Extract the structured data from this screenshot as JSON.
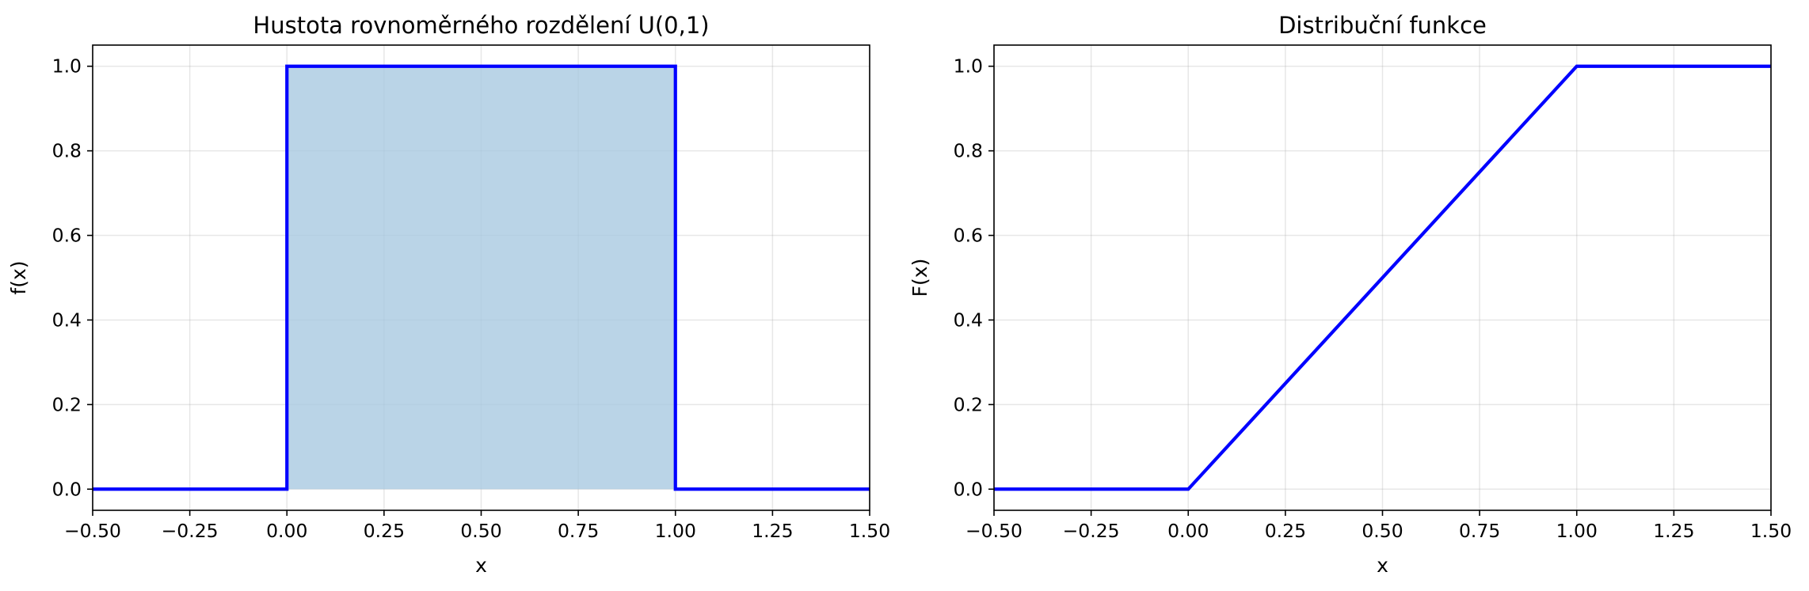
{
  "colors": {
    "line": "#0000ff",
    "fill": "#a6c8e0",
    "grid": "#b0b0b0"
  },
  "chart_data": [
    {
      "type": "area",
      "title": "Hustota rovnoměrného rozdělení U(0,1)",
      "xlabel": "x",
      "ylabel": "f(x)",
      "xlim": [
        -0.5,
        1.5
      ],
      "ylim": [
        -0.05,
        1.05
      ],
      "grid": true,
      "xticks": [
        -0.5,
        -0.25,
        0.0,
        0.25,
        0.5,
        0.75,
        1.0,
        1.25,
        1.5
      ],
      "xtick_labels": [
        "−0.50",
        "−0.25",
        "0.00",
        "0.25",
        "0.50",
        "0.75",
        "1.00",
        "1.25",
        "1.50"
      ],
      "yticks": [
        0.0,
        0.2,
        0.4,
        0.6,
        0.8,
        1.0
      ],
      "ytick_labels": [
        "0.0",
        "0.2",
        "0.4",
        "0.6",
        "0.8",
        "1.0"
      ],
      "series": [
        {
          "x": [
            -0.5,
            0.0,
            0.0,
            1.0,
            1.0,
            1.5
          ],
          "y": [
            0,
            0,
            1,
            1,
            0,
            0
          ]
        }
      ],
      "fill_between": {
        "x": [
          0.0,
          1.0
        ],
        "y": 1.0
      }
    },
    {
      "type": "line",
      "title": "Distribuční funkce",
      "xlabel": "x",
      "ylabel": "F(x)",
      "xlim": [
        -0.5,
        1.5
      ],
      "ylim": [
        -0.05,
        1.05
      ],
      "grid": true,
      "xticks": [
        -0.5,
        -0.25,
        0.0,
        0.25,
        0.5,
        0.75,
        1.0,
        1.25,
        1.5
      ],
      "xtick_labels": [
        "−0.50",
        "−0.25",
        "0.00",
        "0.25",
        "0.50",
        "0.75",
        "1.00",
        "1.25",
        "1.50"
      ],
      "yticks": [
        0.0,
        0.2,
        0.4,
        0.6,
        0.8,
        1.0
      ],
      "ytick_labels": [
        "0.0",
        "0.2",
        "0.4",
        "0.6",
        "0.8",
        "1.0"
      ],
      "series": [
        {
          "x": [
            -0.5,
            0.0,
            1.0,
            1.5
          ],
          "y": [
            0,
            0,
            1,
            1
          ]
        }
      ]
    }
  ]
}
